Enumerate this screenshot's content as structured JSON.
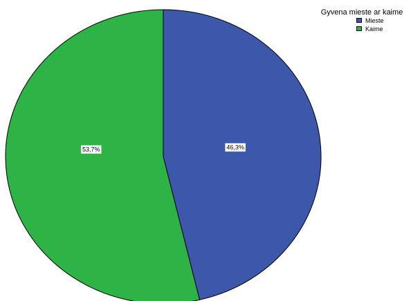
{
  "chart_data": {
    "type": "pie",
    "legend_title": "Gyvena mieste ar kaime",
    "legend_position": "top-right",
    "slices": [
      {
        "label": "Mieste",
        "value": 46.3,
        "display": "46,3%",
        "color": "#3d58ab"
      },
      {
        "label": "Kaime",
        "value": 53.7,
        "display": "53,7%",
        "color": "#2db346"
      }
    ]
  }
}
